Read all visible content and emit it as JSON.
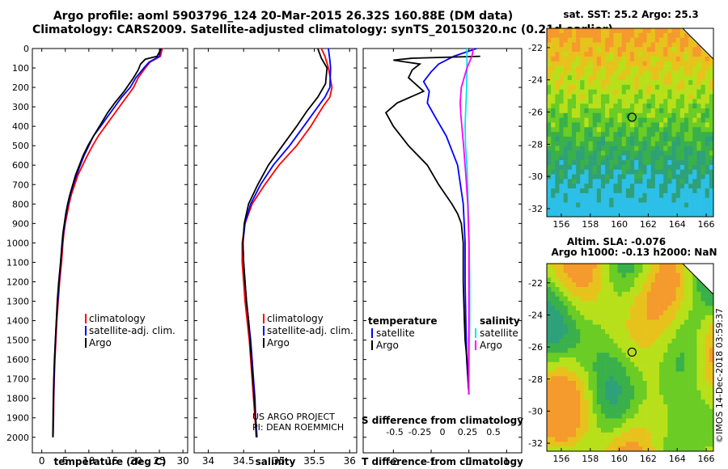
{
  "header": {
    "line1": "Argo profile: aoml 5903796_124 20-Mar-2015 26.32S 160.88E (DM data)",
    "line2": "Climatology: CARS2009. Satellite-adjusted climatology: synTS_20150320.nc (0.21d earlier)"
  },
  "colors": {
    "climatology": "#ff0000",
    "satellite": "#0000ff",
    "argo": "#000000",
    "sat_salinity": "#00e8e8",
    "argo_salinity": "#ff00ff"
  },
  "depth_axis": {
    "ticks": [
      0,
      100,
      200,
      300,
      400,
      500,
      600,
      700,
      800,
      900,
      1000,
      1100,
      1200,
      1300,
      1400,
      1500,
      1600,
      1700,
      1800,
      1900,
      2000
    ]
  },
  "chart_data": [
    {
      "type": "line",
      "xlabel": "temperature (deg C)",
      "xlim": [
        -2,
        31
      ],
      "ylim": [
        0,
        2080
      ],
      "xticks": [
        0,
        5,
        10,
        15,
        20,
        25,
        30
      ],
      "legend": [
        "climatology",
        "satellite-adj. clim.",
        "Argo"
      ],
      "legend_location": "lower-right",
      "series": [
        {
          "name": "climatology",
          "color": "#ff0000",
          "points": [
            [
              25.6,
              0
            ],
            [
              25.2,
              40
            ],
            [
              23.0,
              70
            ],
            [
              22.0,
              100
            ],
            [
              20.5,
              150
            ],
            [
              19.5,
              200
            ],
            [
              18.0,
              250
            ],
            [
              16.5,
              300
            ],
            [
              15.0,
              350
            ],
            [
              13.5,
              400
            ],
            [
              12.0,
              450
            ],
            [
              10.8,
              500
            ],
            [
              9.7,
              550
            ],
            [
              8.7,
              600
            ],
            [
              7.7,
              650
            ],
            [
              7.0,
              700
            ],
            [
              6.3,
              750
            ],
            [
              5.8,
              800
            ],
            [
              5.4,
              850
            ],
            [
              5.0,
              900
            ],
            [
              4.7,
              950
            ],
            [
              4.5,
              1000
            ],
            [
              4.2,
              1100
            ],
            [
              3.8,
              1200
            ],
            [
              3.5,
              1300
            ],
            [
              3.2,
              1400
            ],
            [
              3.0,
              1500
            ],
            [
              2.8,
              1600
            ],
            [
              2.65,
              1700
            ],
            [
              2.55,
              1800
            ],
            [
              2.5,
              1900
            ],
            [
              2.4,
              2000
            ]
          ]
        },
        {
          "name": "satellite-adj. clim.",
          "color": "#0000ff",
          "points": [
            [
              25.2,
              0
            ],
            [
              25.0,
              40
            ],
            [
              22.8,
              70
            ],
            [
              21.7,
              100
            ],
            [
              20.0,
              150
            ],
            [
              18.8,
              200
            ],
            [
              17.0,
              250
            ],
            [
              15.5,
              300
            ],
            [
              14.0,
              350
            ],
            [
              12.5,
              400
            ],
            [
              11.0,
              450
            ],
            [
              10.0,
              500
            ],
            [
              9.0,
              550
            ],
            [
              8.2,
              600
            ],
            [
              7.4,
              650
            ],
            [
              6.7,
              700
            ],
            [
              6.1,
              750
            ],
            [
              5.6,
              800
            ],
            [
              5.2,
              850
            ],
            [
              4.9,
              900
            ],
            [
              4.6,
              950
            ],
            [
              4.4,
              1000
            ],
            [
              4.0,
              1100
            ],
            [
              3.7,
              1200
            ],
            [
              3.4,
              1300
            ],
            [
              3.1,
              1400
            ],
            [
              2.9,
              1500
            ],
            [
              2.75,
              1600
            ],
            [
              2.6,
              1700
            ],
            [
              2.5,
              1800
            ],
            [
              2.45,
              1900
            ],
            [
              2.4,
              2000
            ]
          ]
        },
        {
          "name": "Argo",
          "color": "#000000",
          "points": [
            [
              25.4,
              0
            ],
            [
              24.5,
              40
            ],
            [
              22.0,
              55
            ],
            [
              21.0,
              80
            ],
            [
              20.5,
              110
            ],
            [
              19.5,
              150
            ],
            [
              17.5,
              220
            ],
            [
              15.5,
              280
            ],
            [
              14.0,
              330
            ],
            [
              12.5,
              390
            ],
            [
              11.0,
              450
            ],
            [
              9.8,
              500
            ],
            [
              8.8,
              550
            ],
            [
              8.0,
              600
            ],
            [
              7.2,
              650
            ],
            [
              6.6,
              700
            ],
            [
              6.0,
              750
            ],
            [
              5.5,
              800
            ],
            [
              5.1,
              850
            ],
            [
              4.8,
              900
            ],
            [
              4.5,
              950
            ],
            [
              4.3,
              1000
            ],
            [
              4.0,
              1100
            ],
            [
              3.6,
              1200
            ],
            [
              3.3,
              1300
            ],
            [
              3.1,
              1400
            ],
            [
              2.9,
              1500
            ],
            [
              2.7,
              1600
            ],
            [
              2.55,
              1700
            ],
            [
              2.45,
              1800
            ],
            [
              2.4,
              1900
            ],
            [
              2.35,
              2000
            ]
          ]
        }
      ]
    },
    {
      "type": "line",
      "xlabel": "salinity",
      "xlim": [
        33.8,
        36.1
      ],
      "ylim": [
        0,
        2080
      ],
      "xticks": [
        34,
        34.5,
        35,
        35.5,
        36
      ],
      "legend": [
        "climatology",
        "satellite-adj. clim.",
        "Argo"
      ],
      "legend_location": "lower-right",
      "annotation": [
        "US ARGO PROJECT",
        "PI: DEAN ROEMMICH"
      ],
      "series": [
        {
          "name": "climatology",
          "color": "#ff0000",
          "points": [
            [
              35.6,
              0
            ],
            [
              35.65,
              40
            ],
            [
              35.7,
              100
            ],
            [
              35.75,
              200
            ],
            [
              35.72,
              250
            ],
            [
              35.62,
              300
            ],
            [
              35.45,
              400
            ],
            [
              35.25,
              500
            ],
            [
              35.0,
              600
            ],
            [
              34.8,
              700
            ],
            [
              34.62,
              800
            ],
            [
              34.52,
              900
            ],
            [
              34.48,
              1000
            ],
            [
              34.48,
              1100
            ],
            [
              34.5,
              1200
            ],
            [
              34.52,
              1300
            ],
            [
              34.55,
              1400
            ],
            [
              34.58,
              1500
            ],
            [
              34.6,
              1600
            ],
            [
              34.62,
              1700
            ],
            [
              34.64,
              1800
            ],
            [
              34.66,
              1900
            ],
            [
              34.68,
              2000
            ]
          ]
        },
        {
          "name": "satellite-adj. clim.",
          "color": "#0000ff",
          "points": [
            [
              35.7,
              0
            ],
            [
              35.72,
              60
            ],
            [
              35.73,
              100
            ],
            [
              35.72,
              200
            ],
            [
              35.65,
              250
            ],
            [
              35.55,
              300
            ],
            [
              35.35,
              400
            ],
            [
              35.15,
              500
            ],
            [
              34.92,
              600
            ],
            [
              34.74,
              700
            ],
            [
              34.6,
              800
            ],
            [
              34.52,
              900
            ],
            [
              34.49,
              1000
            ],
            [
              34.5,
              1100
            ],
            [
              34.52,
              1200
            ],
            [
              34.54,
              1300
            ],
            [
              34.57,
              1400
            ],
            [
              34.6,
              1500
            ],
            [
              34.62,
              1600
            ],
            [
              34.64,
              1700
            ],
            [
              34.66,
              1800
            ],
            [
              34.67,
              1900
            ],
            [
              34.69,
              2000
            ]
          ]
        },
        {
          "name": "Argo",
          "color": "#000000",
          "points": [
            [
              35.55,
              0
            ],
            [
              35.6,
              50
            ],
            [
              35.68,
              100
            ],
            [
              35.66,
              180
            ],
            [
              35.55,
              250
            ],
            [
              35.4,
              320
            ],
            [
              35.25,
              400
            ],
            [
              35.05,
              500
            ],
            [
              34.85,
              600
            ],
            [
              34.7,
              700
            ],
            [
              34.57,
              800
            ],
            [
              34.51,
              900
            ],
            [
              34.49,
              1000
            ],
            [
              34.5,
              1100
            ],
            [
              34.52,
              1200
            ],
            [
              34.54,
              1300
            ],
            [
              34.57,
              1400
            ],
            [
              34.59,
              1500
            ],
            [
              34.61,
              1600
            ],
            [
              34.63,
              1700
            ],
            [
              34.65,
              1800
            ],
            [
              34.67,
              1900
            ],
            [
              34.68,
              2000
            ]
          ]
        }
      ]
    },
    {
      "type": "line",
      "xlabel": "T difference from climatology",
      "xlabel2": "S difference from climatology",
      "xlim": [
        -2.8,
        1.4
      ],
      "ylim": [
        0,
        2080
      ],
      "xticks": [
        -2,
        -1,
        0,
        1
      ],
      "xticks2": [
        "-0.5",
        "-0.25",
        "0",
        "0.25",
        "0.5"
      ],
      "legend_left": [
        "temperature",
        "satellite",
        "Argo"
      ],
      "legend_right": [
        "salinity",
        "satellite",
        "Argo"
      ],
      "series": [
        {
          "name": "satellite",
          "color": "#0000ff",
          "points": [
            [
              0.2,
              0
            ],
            [
              -0.4,
              40
            ],
            [
              -0.8,
              80
            ],
            [
              -1.0,
              120
            ],
            [
              -1.2,
              170
            ],
            [
              -1.05,
              220
            ],
            [
              -1.1,
              280
            ],
            [
              -0.9,
              350
            ],
            [
              -0.6,
              450
            ],
            [
              -0.3,
              600
            ],
            [
              -0.15,
              800
            ],
            [
              -0.1,
              1000
            ],
            [
              -0.1,
              1200
            ],
            [
              -0.08,
              1400
            ],
            [
              -0.06,
              1600
            ],
            [
              0.0,
              1780
            ]
          ]
        },
        {
          "name": "Argo",
          "color": "#000000",
          "points": [
            [
              0.3,
              40
            ],
            [
              -1.5,
              50
            ],
            [
              -2.0,
              60
            ],
            [
              -1.3,
              80
            ],
            [
              -1.5,
              110
            ],
            [
              -1.6,
              150
            ],
            [
              -1.2,
              220
            ],
            [
              -1.9,
              280
            ],
            [
              -2.2,
              330
            ],
            [
              -2.0,
              400
            ],
            [
              -1.6,
              500
            ],
            [
              -1.1,
              600
            ],
            [
              -0.8,
              700
            ],
            [
              -0.45,
              800
            ],
            [
              -0.3,
              850
            ],
            [
              -0.2,
              900
            ],
            [
              -0.15,
              1000
            ],
            [
              -0.15,
              1200
            ],
            [
              -0.12,
              1400
            ],
            [
              -0.1,
              1500
            ],
            [
              -0.05,
              1600
            ],
            [
              0.0,
              1780
            ]
          ]
        },
        {
          "name": "salinity satellite",
          "color": "#00e8e8",
          "points": [
            [
              -0.05,
              0
            ],
            [
              -0.05,
              100
            ],
            [
              -0.06,
              200
            ],
            [
              -0.08,
              300
            ],
            [
              -0.1,
              400
            ],
            [
              -0.09,
              500
            ],
            [
              -0.05,
              600
            ],
            [
              -0.02,
              800
            ],
            [
              0.01,
              1000
            ],
            [
              0.02,
              1200
            ],
            [
              0.02,
              1400
            ],
            [
              0.01,
              1600
            ],
            [
              0.0,
              1780
            ]
          ]
        },
        {
          "name": "salinity Argo",
          "color": "#ff00ff",
          "points": [
            [
              0.12,
              0
            ],
            [
              0.08,
              40
            ],
            [
              -0.05,
              100
            ],
            [
              -0.2,
              200
            ],
            [
              -0.23,
              280
            ],
            [
              -0.21,
              350
            ],
            [
              -0.14,
              500
            ],
            [
              -0.08,
              650
            ],
            [
              -0.03,
              800
            ],
            [
              0.0,
              1000
            ],
            [
              0.0,
              1200
            ],
            [
              0.0,
              1400
            ],
            [
              -0.01,
              1600
            ],
            [
              0.0,
              1780
            ]
          ]
        }
      ]
    }
  ],
  "maps": [
    {
      "title": "sat. SST: 25.2 Argo: 25.3",
      "xticks": [
        156,
        158,
        160,
        162,
        164,
        166
      ],
      "yticks": [
        -22,
        -24,
        -26,
        -28,
        -30,
        -32
      ],
      "lon_range": [
        155,
        166.5
      ],
      "lat_range": [
        -32.5,
        -20.8
      ],
      "marker": {
        "lon": 160.88,
        "lat": -26.32
      }
    },
    {
      "title_line1": "Altim. SLA: -0.076",
      "title_line2": "Argo h1000: -0.13 h2000: NaN",
      "xticks": [
        156,
        158,
        160,
        162,
        164,
        166
      ],
      "yticks": [
        -22,
        -24,
        -26,
        -28,
        -30,
        -32
      ],
      "lon_range": [
        155,
        166.5
      ],
      "lat_range": [
        -32.5,
        -20.8
      ],
      "marker": {
        "lon": 160.88,
        "lat": -26.32
      }
    }
  ],
  "side_label": "©IMOS 14-Dec-2018 03:59:37"
}
